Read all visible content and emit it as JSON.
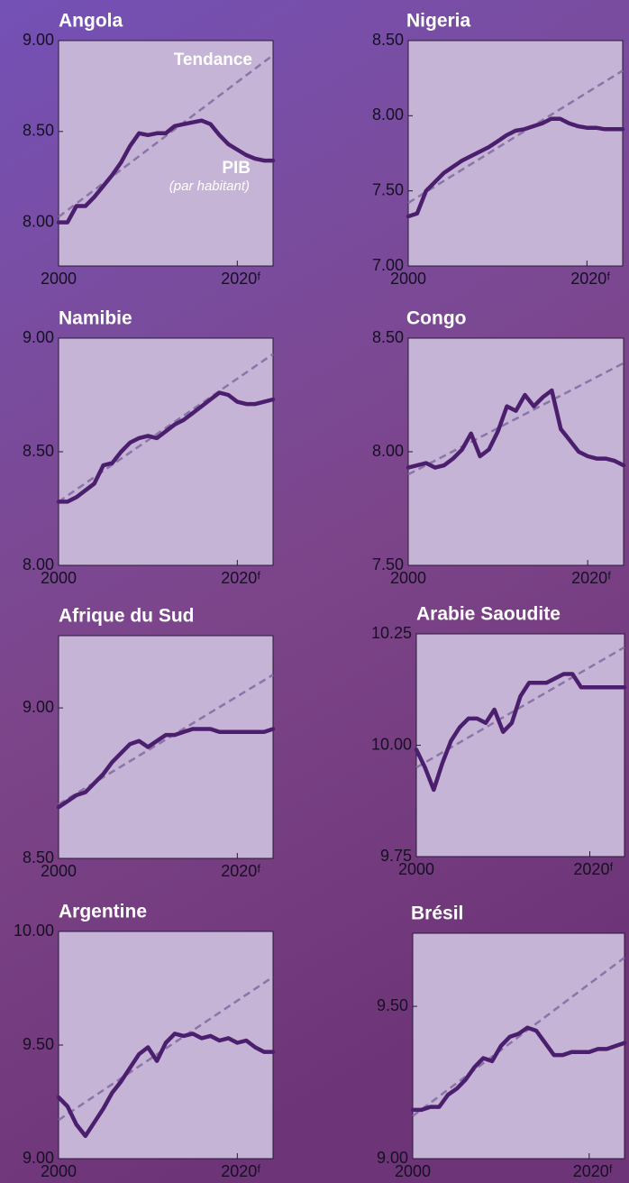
{
  "chart_data": [
    {
      "type": "line",
      "title": "Angola",
      "x": [
        2000,
        2001,
        2002,
        2003,
        2004,
        2005,
        2006,
        2007,
        2008,
        2009,
        2010,
        2011,
        2012,
        2013,
        2014,
        2015,
        2016,
        2017,
        2018,
        2019,
        2020,
        2021,
        2022,
        2023,
        2024
      ],
      "values": [
        8.0,
        8.0,
        8.09,
        8.09,
        8.14,
        8.2,
        8.26,
        8.33,
        8.42,
        8.49,
        8.48,
        8.49,
        8.49,
        8.53,
        8.54,
        8.55,
        8.56,
        8.54,
        8.48,
        8.43,
        8.4,
        8.37,
        8.35,
        8.34,
        8.34
      ],
      "color": "#4b1f6e",
      "trend": {
        "x": [
          2000,
          2024
        ],
        "values": [
          8.03,
          8.92
        ],
        "color": "#8b74a8"
      },
      "annotations": [
        "Tendance",
        "PIB",
        "(par habitant)"
      ],
      "xlim": [
        2000,
        2024
      ],
      "xticks": [
        2000,
        {
          "value": 2020,
          "label": "2020ᶠ"
        }
      ],
      "ylim": [
        7.76,
        9.0
      ],
      "yticks": [
        {
          "value": 8,
          "label": "8.00"
        },
        {
          "value": 8.5,
          "label": "8.50"
        },
        {
          "value": 9,
          "label": "9.00"
        }
      ]
    },
    {
      "type": "line",
      "title": "Nigeria",
      "x": [
        2000,
        2001,
        2002,
        2003,
        2004,
        2005,
        2006,
        2007,
        2008,
        2009,
        2010,
        2011,
        2012,
        2013,
        2014,
        2015,
        2016,
        2017,
        2018,
        2019,
        2020,
        2021,
        2022,
        2023,
        2024
      ],
      "values": [
        7.33,
        7.35,
        7.5,
        7.56,
        7.62,
        7.66,
        7.7,
        7.73,
        7.76,
        7.79,
        7.83,
        7.87,
        7.9,
        7.91,
        7.93,
        7.95,
        7.98,
        7.98,
        7.95,
        7.93,
        7.92,
        7.92,
        7.91,
        7.91,
        7.91
      ],
      "color": "#4b1f6e",
      "trend": {
        "x": [
          2000,
          2024
        ],
        "values": [
          7.42,
          8.3
        ],
        "color": "#8b74a8"
      },
      "xlim": [
        2000,
        2024
      ],
      "xticks": [
        2000,
        {
          "value": 2020,
          "label": "2020ᶠ"
        }
      ],
      "ylim": [
        7.0,
        8.5
      ],
      "yticks": [
        {
          "value": 7,
          "label": "7.00"
        },
        {
          "value": 7.5,
          "label": "7.50"
        },
        {
          "value": 8,
          "label": "8.00"
        },
        {
          "value": 8.5,
          "label": "8.50"
        }
      ]
    },
    {
      "type": "line",
      "title": "Namibie",
      "x": [
        2000,
        2001,
        2002,
        2003,
        2004,
        2005,
        2006,
        2007,
        2008,
        2009,
        2010,
        2011,
        2012,
        2013,
        2014,
        2015,
        2016,
        2017,
        2018,
        2019,
        2020,
        2021,
        2022,
        2023,
        2024
      ],
      "values": [
        8.28,
        8.28,
        8.3,
        8.33,
        8.36,
        8.44,
        8.45,
        8.5,
        8.54,
        8.56,
        8.57,
        8.56,
        8.59,
        8.62,
        8.64,
        8.67,
        8.7,
        8.73,
        8.76,
        8.75,
        8.72,
        8.71,
        8.71,
        8.72,
        8.73
      ],
      "color": "#4b1f6e",
      "trend": {
        "x": [
          2000,
          2024
        ],
        "values": [
          8.28,
          8.93
        ],
        "color": "#8b74a8"
      },
      "xlim": [
        2000,
        2024
      ],
      "xticks": [
        2000,
        {
          "value": 2020,
          "label": "2020ᶠ"
        }
      ],
      "ylim": [
        8.0,
        9.0
      ],
      "yticks": [
        {
          "value": 8,
          "label": "8.00"
        },
        {
          "value": 8.5,
          "label": "8.50"
        },
        {
          "value": 9,
          "label": "9.00"
        }
      ]
    },
    {
      "type": "line",
      "title": "Congo",
      "x": [
        2000,
        2001,
        2002,
        2003,
        2004,
        2005,
        2006,
        2007,
        2008,
        2009,
        2010,
        2011,
        2012,
        2013,
        2014,
        2015,
        2016,
        2017,
        2018,
        2019,
        2020,
        2021,
        2022,
        2023,
        2024
      ],
      "values": [
        7.93,
        7.94,
        7.95,
        7.93,
        7.94,
        7.97,
        8.01,
        8.08,
        7.98,
        8.01,
        8.09,
        8.2,
        8.18,
        8.25,
        8.2,
        8.24,
        8.27,
        8.1,
        8.05,
        8.0,
        7.98,
        7.97,
        7.97,
        7.96,
        7.94
      ],
      "color": "#4b1f6e",
      "trend": {
        "x": [
          2000,
          2024
        ],
        "values": [
          7.9,
          8.39
        ],
        "color": "#8b74a8"
      },
      "xlim": [
        2000,
        2024
      ],
      "xticks": [
        2000,
        {
          "value": 2020,
          "label": "2020ᶠ"
        }
      ],
      "ylim": [
        7.5,
        8.5
      ],
      "yticks": [
        {
          "value": 7.5,
          "label": "7.50"
        },
        {
          "value": 8,
          "label": "8.00"
        },
        {
          "value": 8.5,
          "label": "8.50"
        }
      ]
    },
    {
      "type": "line",
      "title": "Afrique du Sud",
      "x": [
        2000,
        2001,
        2002,
        2003,
        2004,
        2005,
        2006,
        2007,
        2008,
        2009,
        2010,
        2011,
        2012,
        2013,
        2014,
        2015,
        2016,
        2017,
        2018,
        2019,
        2020,
        2021,
        2022,
        2023,
        2024
      ],
      "values": [
        8.67,
        8.69,
        8.71,
        8.72,
        8.75,
        8.78,
        8.82,
        8.85,
        8.88,
        8.89,
        8.87,
        8.89,
        8.91,
        8.91,
        8.92,
        8.93,
        8.93,
        8.93,
        8.92,
        8.92,
        8.92,
        8.92,
        8.92,
        8.92,
        8.93
      ],
      "color": "#4b1f6e",
      "trend": {
        "x": [
          2000,
          2024
        ],
        "values": [
          8.68,
          9.11
        ],
        "color": "#8b74a8"
      },
      "xlim": [
        2000,
        2024
      ],
      "xticks": [
        2000,
        {
          "value": 2020,
          "label": "2020ᶠ"
        }
      ],
      "ylim": [
        8.5,
        9.24
      ],
      "yticks": [
        {
          "value": 8.5,
          "label": "8.50"
        },
        {
          "value": 9,
          "label": "9.00"
        }
      ]
    },
    {
      "type": "line",
      "title": "Arabie Saoudite",
      "x": [
        2000,
        2001,
        2002,
        2003,
        2004,
        2005,
        2006,
        2007,
        2008,
        2009,
        2010,
        2011,
        2012,
        2013,
        2014,
        2015,
        2016,
        2017,
        2018,
        2019,
        2020,
        2021,
        2022,
        2023,
        2024
      ],
      "values": [
        9.99,
        9.95,
        9.9,
        9.96,
        10.01,
        10.04,
        10.06,
        10.06,
        10.05,
        10.08,
        10.03,
        10.05,
        10.11,
        10.14,
        10.14,
        10.14,
        10.15,
        10.16,
        10.16,
        10.13,
        10.13,
        10.13,
        10.13,
        10.13,
        10.13
      ],
      "color": "#4b1f6e",
      "trend": {
        "x": [
          2000,
          2024
        ],
        "values": [
          9.95,
          10.22
        ],
        "color": "#8b74a8"
      },
      "xlim": [
        2000,
        2024
      ],
      "xticks": [
        2000,
        {
          "value": 2020,
          "label": "2020ᶠ"
        }
      ],
      "ylim": [
        9.75,
        10.25
      ],
      "yticks": [
        {
          "value": 9.75,
          "label": "9.75"
        },
        {
          "value": 10,
          "label": "10.00"
        },
        {
          "value": 10.25,
          "label": "10.25"
        }
      ]
    },
    {
      "type": "line",
      "title": "Argentine",
      "x": [
        2000,
        2001,
        2002,
        2003,
        2004,
        2005,
        2006,
        2007,
        2008,
        2009,
        2010,
        2011,
        2012,
        2013,
        2014,
        2015,
        2016,
        2017,
        2018,
        2019,
        2020,
        2021,
        2022,
        2023,
        2024
      ],
      "values": [
        9.27,
        9.23,
        9.15,
        9.1,
        9.16,
        9.22,
        9.29,
        9.34,
        9.4,
        9.46,
        9.49,
        9.43,
        9.51,
        9.55,
        9.54,
        9.55,
        9.53,
        9.54,
        9.52,
        9.53,
        9.51,
        9.52,
        9.49,
        9.47,
        9.47
      ],
      "color": "#4b1f6e",
      "trend": {
        "x": [
          2000,
          2024
        ],
        "values": [
          9.17,
          9.8
        ],
        "color": "#8b74a8"
      },
      "xlim": [
        2000,
        2024
      ],
      "xticks": [
        2000,
        {
          "value": 2020,
          "label": "2020ᶠ"
        }
      ],
      "ylim": [
        9.0,
        10.0
      ],
      "yticks": [
        {
          "value": 9,
          "label": "9.00"
        },
        {
          "value": 9.5,
          "label": "9.50"
        },
        {
          "value": 10,
          "label": "10.00"
        }
      ]
    },
    {
      "type": "line",
      "title": "Brésil",
      "x": [
        2000,
        2001,
        2002,
        2003,
        2004,
        2005,
        2006,
        2007,
        2008,
        2009,
        2010,
        2011,
        2012,
        2013,
        2014,
        2015,
        2016,
        2017,
        2018,
        2019,
        2020,
        2021,
        2022,
        2023,
        2024
      ],
      "values": [
        9.16,
        9.16,
        9.17,
        9.17,
        9.21,
        9.23,
        9.26,
        9.3,
        9.33,
        9.32,
        9.37,
        9.4,
        9.41,
        9.43,
        9.42,
        9.38,
        9.34,
        9.34,
        9.35,
        9.35,
        9.35,
        9.36,
        9.36,
        9.37,
        9.38
      ],
      "color": "#4b1f6e",
      "trend": {
        "x": [
          2000,
          2024
        ],
        "values": [
          9.14,
          9.66
        ],
        "color": "#8b74a8"
      },
      "xlim": [
        2000,
        2024
      ],
      "xticks": [
        2000,
        {
          "value": 2020,
          "label": "2020ᶠ"
        }
      ],
      "ylim": [
        9.0,
        9.74
      ],
      "yticks": [
        {
          "value": 9,
          "label": "9.00"
        },
        {
          "value": 9.5,
          "label": "9.50"
        }
      ]
    }
  ]
}
